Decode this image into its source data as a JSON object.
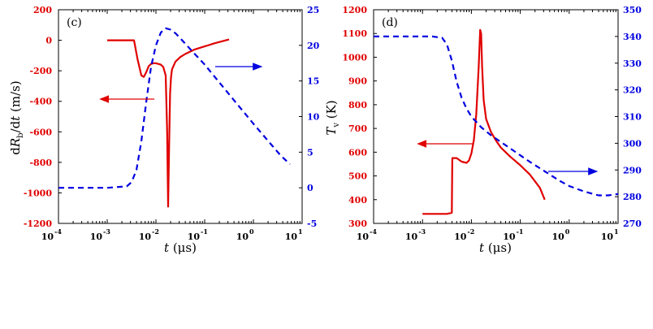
{
  "colors": {
    "left_series": "#e00000",
    "right_series": "#0000e0",
    "axes": "#000000"
  },
  "chart_data": [
    {
      "type": "line",
      "panel_label": "(c)",
      "x_scale": "log",
      "xlim_exp": [
        -4,
        1
      ],
      "xlabel_prefix": "t",
      "xlabel_unit": "(μs)",
      "x_tick_exponents": [
        "-4",
        "-3",
        "-2",
        "-1",
        "0",
        "1"
      ],
      "x_tick_base": "10",
      "left_axis": {
        "label": "dRb/dt (m/s)",
        "label_main": "d",
        "label_var": "R",
        "label_sub": "b",
        "label_rest": "/d",
        "label_var2": "t",
        "label_unit": " (m/s)",
        "ylim": [
          -1200,
          200
        ],
        "ticks": [
          "200",
          "0",
          "-200",
          "-400",
          "-600",
          "-800",
          "-1000",
          "-1200"
        ],
        "tick_values": [
          200,
          0,
          -200,
          -400,
          -600,
          -800,
          -1000,
          -1200
        ]
      },
      "right_axis": {
        "ylim": [
          -5,
          25
        ],
        "ticks": [
          "25",
          "20",
          "15",
          "10",
          "5",
          "0",
          "-5"
        ],
        "tick_values": [
          25,
          20,
          15,
          10,
          5,
          0,
          -5
        ]
      },
      "series": [
        {
          "name": "dRb/dt",
          "axis": "left",
          "style": "solid",
          "x_exp": [
            -3.0,
            -2.8,
            -2.6,
            -2.45,
            -2.38,
            -2.3,
            -2.25,
            -2.2,
            -2.15,
            -2.1,
            -2.05,
            -2.0,
            -1.95,
            -1.9,
            -1.85,
            -1.8,
            -1.77,
            -1.75,
            -1.73,
            -1.71,
            -1.69,
            -1.67,
            -1.6,
            -1.5,
            -1.4,
            -1.2,
            -1.0,
            -0.8,
            -0.5
          ],
          "y": [
            0,
            0,
            0,
            0,
            -120,
            -230,
            -240,
            -210,
            -170,
            -155,
            -150,
            -150,
            -155,
            -160,
            -175,
            -230,
            -600,
            -1090,
            -700,
            -350,
            -240,
            -190,
            -140,
            -110,
            -90,
            -60,
            -40,
            -20,
            5
          ]
        },
        {
          "name": "right series (dashed)",
          "axis": "right",
          "style": "dashed",
          "x_exp": [
            -4.0,
            -3.5,
            -3.0,
            -2.6,
            -2.5,
            -2.4,
            -2.3,
            -2.2,
            -2.1,
            -2.0,
            -1.9,
            -1.8,
            -1.7,
            -1.6,
            -1.5,
            -1.3,
            -1.0,
            -0.7,
            -0.4,
            0.0,
            0.3,
            0.55,
            0.75
          ],
          "y": [
            0,
            0,
            0,
            0.2,
            0.8,
            2.5,
            6.5,
            12.0,
            17.0,
            20.0,
            21.8,
            22.4,
            22.2,
            21.7,
            21.0,
            19.5,
            17.3,
            14.8,
            12.3,
            9.0,
            6.6,
            4.6,
            3.3
          ]
        }
      ],
      "annotations": [
        {
          "arrow": "left",
          "points_to": "left axis"
        },
        {
          "arrow": "right",
          "points_to": "right axis"
        }
      ]
    },
    {
      "type": "line",
      "panel_label": "(d)",
      "x_scale": "log",
      "xlim_exp": [
        -4,
        1
      ],
      "xlabel_prefix": "t",
      "xlabel_unit": "(μs)",
      "x_tick_exponents": [
        "-4",
        "-3",
        "-2",
        "-1",
        "0",
        "1"
      ],
      "x_tick_base": "10",
      "left_axis": {
        "label": "Tv (K)",
        "label_main": "T",
        "label_sub": "v",
        "label_unit": " (K)",
        "ylim": [
          300,
          1200
        ],
        "ticks": [
          "1200",
          "1100",
          "1000",
          "900",
          "800",
          "700",
          "600",
          "500",
          "400",
          "300"
        ],
        "tick_values": [
          1200,
          1100,
          1000,
          900,
          800,
          700,
          600,
          500,
          400,
          300
        ]
      },
      "right_axis": {
        "ylim": [
          270,
          350
        ],
        "ticks": [
          "350",
          "340",
          "330",
          "320",
          "310",
          "300",
          "290",
          "280",
          "270"
        ],
        "tick_values": [
          350,
          340,
          330,
          320,
          310,
          300,
          290,
          280,
          270
        ]
      },
      "series": [
        {
          "name": "Tv",
          "axis": "left",
          "style": "solid",
          "x_exp": [
            -3.0,
            -2.8,
            -2.5,
            -2.4,
            -2.39,
            -2.3,
            -2.2,
            -2.1,
            -2.05,
            -2.0,
            -1.95,
            -1.9,
            -1.85,
            -1.82,
            -1.8,
            -1.78,
            -1.75,
            -1.7,
            -1.6,
            -1.5,
            -1.4,
            -1.2,
            -1.0,
            -0.8,
            -0.6,
            -0.5
          ],
          "y": [
            340,
            340,
            340,
            345,
            575,
            575,
            560,
            555,
            565,
            595,
            650,
            760,
            960,
            1115,
            1100,
            960,
            820,
            740,
            685,
            650,
            620,
            580,
            545,
            505,
            450,
            400
          ]
        },
        {
          "name": "right series (dashed)",
          "axis": "right",
          "style": "dashed",
          "x_exp": [
            -4.0,
            -3.5,
            -3.0,
            -2.8,
            -2.6,
            -2.5,
            -2.4,
            -2.3,
            -2.2,
            -2.1,
            -2.0,
            -1.8,
            -1.6,
            -1.4,
            -1.2,
            -1.0,
            -0.8,
            -0.5,
            -0.2,
            0.0,
            0.3,
            0.6,
            0.8,
            1.0
          ],
          "y": [
            340,
            340,
            340,
            340,
            339.5,
            337,
            331,
            323,
            317,
            313,
            310,
            306,
            303,
            300.5,
            298,
            295.5,
            293,
            289.5,
            286,
            284,
            282,
            280.5,
            280.5,
            281
          ]
        }
      ],
      "annotations": [
        {
          "arrow": "left",
          "points_to": "left axis"
        },
        {
          "arrow": "right",
          "points_to": "right axis"
        }
      ]
    }
  ]
}
